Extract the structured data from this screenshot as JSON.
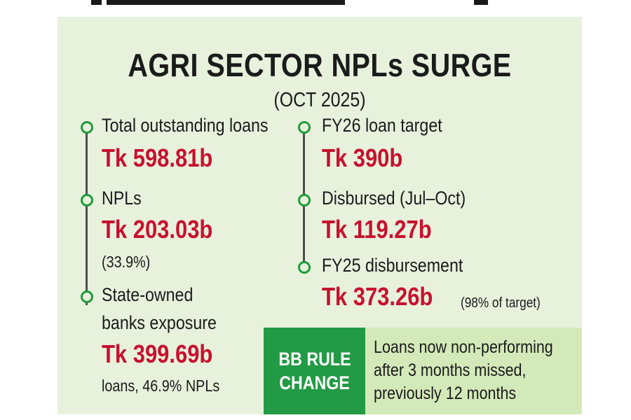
{
  "header": {
    "title": "AGRI SECTOR NPLs SURGE",
    "subtitle": "(OCT 2025)"
  },
  "left_items": [
    {
      "label": "Total outstanding loans",
      "value": "Tk 598.81b"
    },
    {
      "label": "NPLs",
      "value": "Tk 203.03b",
      "note": "(33.9%)"
    },
    {
      "label_line1": "State-owned",
      "label_line2": "banks exposure",
      "value": "Tk 399.69b",
      "note": "loans, 46.9% NPLs"
    }
  ],
  "right_items": [
    {
      "label": "FY26 loan target",
      "value": "Tk 390b"
    },
    {
      "label": "Disbursed (Jul–Oct)",
      "value": "Tk 119.27b"
    },
    {
      "label": "FY25 disbursement",
      "value": "Tk 373.26b",
      "note": "(98% of target)"
    }
  ],
  "rule_change": {
    "badge_line1": "BB RULE",
    "badge_line2": "CHANGE",
    "lines": [
      "Loans now non-performing",
      "after 3 months missed,",
      "previously 12 months"
    ]
  },
  "colors": {
    "card_background": "#e7f1dc",
    "accent_green": "#1e9a3b",
    "value_red": "#c8102e",
    "rule_box": "#d3e9b9",
    "badge_green": "#239a45"
  },
  "icons": {
    "timeline_node": "circle-outline-icon"
  }
}
